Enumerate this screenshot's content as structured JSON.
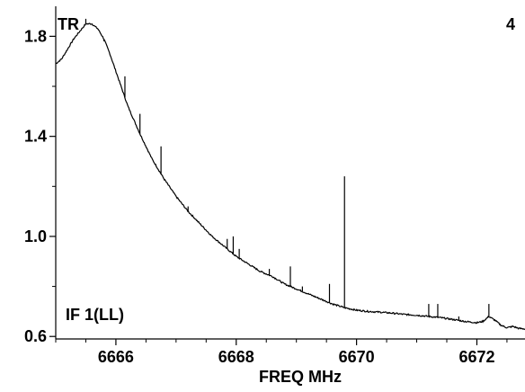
{
  "chart_data": {
    "type": "line",
    "title": "",
    "xlabel": "FREQ MHz",
    "ylabel": "",
    "xlim": [
      6665.0,
      6672.8
    ],
    "ylim": [
      0.59,
      1.92
    ],
    "x_ticks": [
      6666,
      6668,
      6670,
      6672
    ],
    "x_tick_labels": [
      "6666",
      "6668",
      "6670",
      "6672"
    ],
    "y_ticks": [
      0.6,
      1.0,
      1.4,
      1.8
    ],
    "y_tick_labels": [
      "0.6",
      "1.0",
      "1.4",
      "1.8"
    ],
    "grid": false,
    "annotations": {
      "top_left": "TR",
      "top_right": "4",
      "bottom_left": "IF 1(LL)"
    },
    "line_color": "#000000",
    "baseline": {
      "x": [
        6665.0,
        6665.1,
        6665.2,
        6665.3,
        6665.4,
        6665.5,
        6665.6,
        6665.7,
        6665.8,
        6665.9,
        6666.0,
        6666.2,
        6666.4,
        6666.6,
        6666.8,
        6667.0,
        6667.2,
        6667.4,
        6667.6,
        6667.8,
        6668.0,
        6668.2,
        6668.4,
        6668.6,
        6668.8,
        6669.0,
        6669.2,
        6669.4,
        6669.6,
        6669.8,
        6670.0,
        6670.2,
        6670.4,
        6670.6,
        6670.8,
        6671.0,
        6671.2,
        6671.4,
        6671.6,
        6671.8,
        6672.0,
        6672.1,
        6672.2,
        6672.3,
        6672.4,
        6672.5,
        6672.6,
        6672.7,
        6672.8
      ],
      "y": [
        1.69,
        1.71,
        1.75,
        1.79,
        1.82,
        1.85,
        1.85,
        1.83,
        1.79,
        1.73,
        1.66,
        1.52,
        1.41,
        1.31,
        1.23,
        1.16,
        1.1,
        1.05,
        1.0,
        0.96,
        0.92,
        0.89,
        0.86,
        0.84,
        0.81,
        0.79,
        0.77,
        0.75,
        0.73,
        0.715,
        0.705,
        0.7,
        0.697,
        0.693,
        0.688,
        0.685,
        0.68,
        0.675,
        0.668,
        0.66,
        0.655,
        0.66,
        0.68,
        0.665,
        0.645,
        0.635,
        0.64,
        0.632,
        0.63
      ]
    },
    "spikes": [
      {
        "x": 6665.5,
        "y": 1.87
      },
      {
        "x": 6665.8,
        "y": 1.78
      },
      {
        "x": 6666.15,
        "y": 1.64
      },
      {
        "x": 6666.4,
        "y": 1.49
      },
      {
        "x": 6666.75,
        "y": 1.36
      },
      {
        "x": 6667.2,
        "y": 1.12
      },
      {
        "x": 6667.85,
        "y": 0.99
      },
      {
        "x": 6667.95,
        "y": 1.0
      },
      {
        "x": 6668.05,
        "y": 0.95
      },
      {
        "x": 6668.55,
        "y": 0.87
      },
      {
        "x": 6668.9,
        "y": 0.88
      },
      {
        "x": 6669.1,
        "y": 0.8
      },
      {
        "x": 6669.55,
        "y": 0.81
      },
      {
        "x": 6669.8,
        "y": 1.24
      },
      {
        "x": 6671.2,
        "y": 0.73
      },
      {
        "x": 6671.35,
        "y": 0.73
      },
      {
        "x": 6671.7,
        "y": 0.68
      },
      {
        "x": 6672.2,
        "y": 0.73
      }
    ]
  }
}
